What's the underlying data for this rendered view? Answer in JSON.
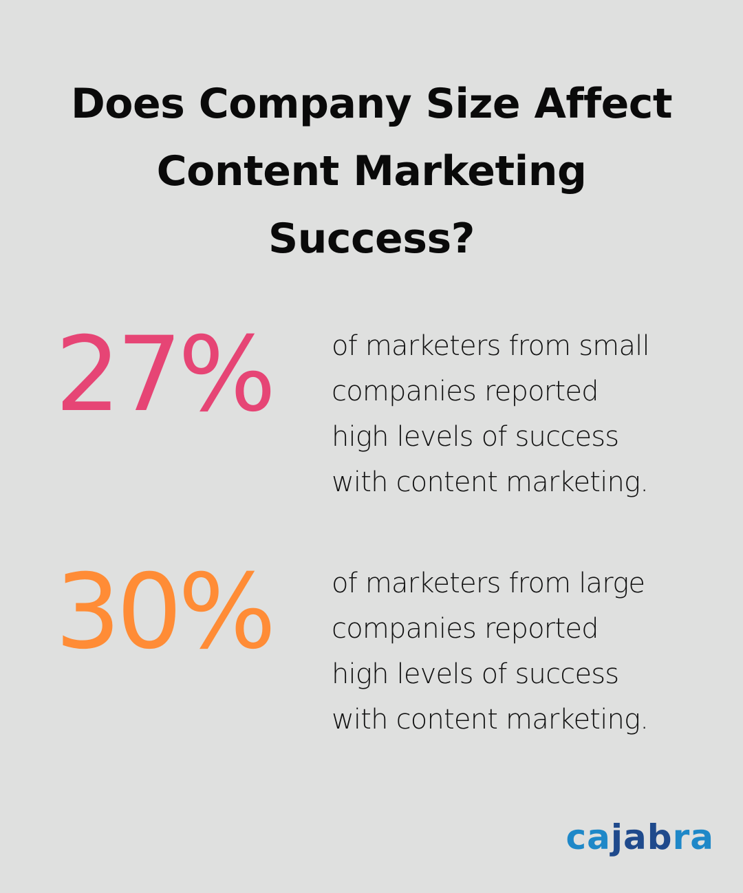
{
  "title": {
    "lines": [
      "Does Company Size Affect",
      "Content Marketing",
      "Success?"
    ]
  },
  "stats": [
    {
      "value": "27%",
      "color": "#e64575",
      "description_lines": [
        "of marketers from small",
        "companies reported",
        "high levels of success",
        "with content marketing."
      ]
    },
    {
      "value": "30%",
      "color": "#ff8c36",
      "description_lines": [
        "of marketers from large",
        "companies reported",
        "high levels of success",
        "with content marketing."
      ]
    }
  ],
  "logo": {
    "parts": [
      "ca",
      "jab",
      "ra"
    ],
    "colors": [
      "#1e88c8",
      "#1f4a8c",
      "#1e88c8"
    ]
  },
  "colors": {
    "background": "#dfe0df",
    "text": "#0a0a0a"
  }
}
